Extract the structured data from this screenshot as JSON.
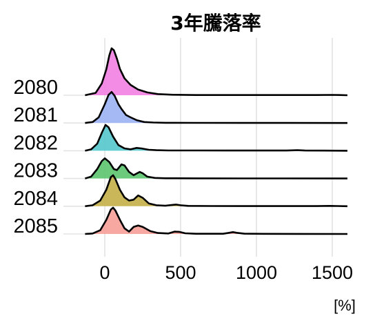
{
  "chart_data": {
    "type": "area",
    "subtype": "ridgeline",
    "title": "3年騰落率",
    "xlabel": "",
    "ylabel": "",
    "x_unit_label": "[%]",
    "xlim": [
      -150,
      1620
    ],
    "x_ticks": [
      0,
      500,
      1000,
      1500
    ],
    "x_tick_labels": [
      "0",
      "500",
      "1000",
      "1500"
    ],
    "grid": true,
    "legend": "none",
    "categories": [
      "2080",
      "2081",
      "2082",
      "2083",
      "2084",
      "2085"
    ],
    "x_range_start": -130,
    "x_range_end": 1600,
    "series": [
      {
        "name": "2080",
        "color": "#F27FE1",
        "points": [
          [
            -130,
            0
          ],
          [
            -60,
            0.05
          ],
          [
            -20,
            0.25
          ],
          [
            10,
            0.55
          ],
          [
            30,
            0.85
          ],
          [
            45,
            1.0
          ],
          [
            60,
            0.96
          ],
          [
            80,
            0.78
          ],
          [
            100,
            0.56
          ],
          [
            130,
            0.36
          ],
          [
            170,
            0.22
          ],
          [
            220,
            0.12
          ],
          [
            280,
            0.06
          ],
          [
            350,
            0.025
          ],
          [
            450,
            0.01
          ],
          [
            600,
            0.005
          ],
          [
            800,
            0.005
          ],
          [
            1000,
            0.004
          ],
          [
            1200,
            0.004
          ],
          [
            1400,
            0.004
          ],
          [
            1500,
            0.008
          ],
          [
            1550,
            0.004
          ],
          [
            1600,
            0
          ]
        ]
      },
      {
        "name": "2081",
        "color": "#9BB1F4",
        "points": [
          [
            -130,
            0
          ],
          [
            -80,
            0.02
          ],
          [
            -40,
            0.12
          ],
          [
            0,
            0.4
          ],
          [
            25,
            0.6
          ],
          [
            45,
            0.66
          ],
          [
            65,
            0.58
          ],
          [
            90,
            0.4
          ],
          [
            110,
            0.3
          ],
          [
            140,
            0.17
          ],
          [
            170,
            0.12
          ],
          [
            210,
            0.06
          ],
          [
            260,
            0.02
          ],
          [
            320,
            0.01
          ],
          [
            400,
            0.005
          ],
          [
            600,
            0.003
          ],
          [
            900,
            0.002
          ],
          [
            1200,
            0.002
          ],
          [
            1600,
            0
          ]
        ]
      },
      {
        "name": "2082",
        "color": "#54C7CC",
        "points": [
          [
            -130,
            0
          ],
          [
            -90,
            0.03
          ],
          [
            -50,
            0.15
          ],
          [
            -20,
            0.38
          ],
          [
            5,
            0.55
          ],
          [
            25,
            0.5
          ],
          [
            55,
            0.3
          ],
          [
            90,
            0.12
          ],
          [
            130,
            0.05
          ],
          [
            170,
            0.03
          ],
          [
            210,
            0.06
          ],
          [
            240,
            0.05
          ],
          [
            290,
            0.02
          ],
          [
            340,
            0.012
          ],
          [
            420,
            0.006
          ],
          [
            600,
            0.006
          ],
          [
            800,
            0.004
          ],
          [
            1000,
            0.004
          ],
          [
            1200,
            0.004
          ],
          [
            1270,
            0.012
          ],
          [
            1320,
            0.005
          ],
          [
            1450,
            0.003
          ],
          [
            1600,
            0
          ]
        ]
      },
      {
        "name": "2083",
        "color": "#5BC46D",
        "points": [
          [
            -130,
            0
          ],
          [
            -90,
            0.04
          ],
          [
            -50,
            0.2
          ],
          [
            -20,
            0.37
          ],
          [
            0,
            0.43
          ],
          [
            30,
            0.35
          ],
          [
            60,
            0.2
          ],
          [
            80,
            0.18
          ],
          [
            110,
            0.3
          ],
          [
            130,
            0.28
          ],
          [
            160,
            0.14
          ],
          [
            190,
            0.07
          ],
          [
            230,
            0.14
          ],
          [
            250,
            0.11
          ],
          [
            280,
            0.04
          ],
          [
            330,
            0.012
          ],
          [
            400,
            0.005
          ],
          [
            600,
            0.003
          ],
          [
            900,
            0.002
          ],
          [
            1200,
            0.002
          ],
          [
            1600,
            0
          ]
        ]
      },
      {
        "name": "2084",
        "color": "#C4AF48",
        "points": [
          [
            -130,
            0
          ],
          [
            -80,
            0.02
          ],
          [
            -30,
            0.12
          ],
          [
            10,
            0.35
          ],
          [
            40,
            0.62
          ],
          [
            55,
            0.66
          ],
          [
            70,
            0.58
          ],
          [
            100,
            0.35
          ],
          [
            130,
            0.19
          ],
          [
            160,
            0.12
          ],
          [
            190,
            0.14
          ],
          [
            220,
            0.23
          ],
          [
            250,
            0.18
          ],
          [
            290,
            0.06
          ],
          [
            340,
            0.02
          ],
          [
            400,
            0.01
          ],
          [
            440,
            0.025
          ],
          [
            470,
            0.035
          ],
          [
            500,
            0.02
          ],
          [
            550,
            0.008
          ],
          [
            700,
            0.004
          ],
          [
            900,
            0.003
          ],
          [
            1200,
            0.003
          ],
          [
            1400,
            0.003
          ],
          [
            1480,
            0.008
          ],
          [
            1530,
            0.005
          ],
          [
            1600,
            0
          ]
        ]
      },
      {
        "name": "2085",
        "color": "#F69E97",
        "points": [
          [
            -130,
            0
          ],
          [
            -80,
            0.01
          ],
          [
            -30,
            0.08
          ],
          [
            10,
            0.3
          ],
          [
            40,
            0.52
          ],
          [
            55,
            0.56
          ],
          [
            70,
            0.5
          ],
          [
            100,
            0.3
          ],
          [
            130,
            0.12
          ],
          [
            160,
            0.05
          ],
          [
            190,
            0.15
          ],
          [
            220,
            0.18
          ],
          [
            250,
            0.15
          ],
          [
            300,
            0.06
          ],
          [
            350,
            0.02
          ],
          [
            420,
            0.01
          ],
          [
            460,
            0.05
          ],
          [
            490,
            0.045
          ],
          [
            530,
            0.015
          ],
          [
            600,
            0.005
          ],
          [
            700,
            0.004
          ],
          [
            780,
            0.005
          ],
          [
            820,
            0.025
          ],
          [
            845,
            0.04
          ],
          [
            870,
            0.025
          ],
          [
            920,
            0.006
          ],
          [
            1050,
            0.003
          ],
          [
            1300,
            0.002
          ],
          [
            1600,
            0
          ]
        ]
      }
    ]
  }
}
